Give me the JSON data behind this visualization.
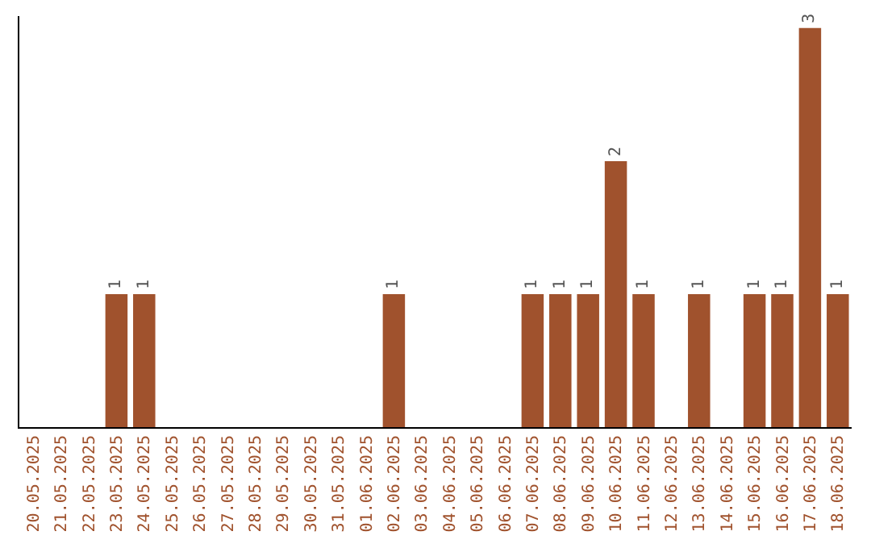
{
  "chart_data": {
    "type": "bar",
    "categories": [
      "20.05.2025",
      "21.05.2025",
      "22.05.2025",
      "23.05.2025",
      "24.05.2025",
      "25.05.2025",
      "26.05.2025",
      "27.05.2025",
      "28.05.2025",
      "29.05.2025",
      "30.05.2025",
      "31.05.2025",
      "01.06.2025",
      "02.06.2025",
      "03.06.2025",
      "04.06.2025",
      "05.06.2025",
      "06.06.2025",
      "07.06.2025",
      "08.06.2025",
      "09.06.2025",
      "10.06.2025",
      "11.06.2025",
      "12.06.2025",
      "13.06.2025",
      "14.06.2025",
      "15.06.2025",
      "16.06.2025",
      "17.06.2025",
      "18.06.2025"
    ],
    "values": [
      0,
      0,
      0,
      1,
      1,
      0,
      0,
      0,
      0,
      0,
      0,
      0,
      0,
      1,
      0,
      0,
      0,
      0,
      1,
      1,
      1,
      2,
      1,
      0,
      1,
      0,
      1,
      1,
      3,
      1
    ],
    "value_labels": [
      null,
      null,
      null,
      "1",
      "1",
      null,
      null,
      null,
      null,
      null,
      null,
      null,
      null,
      "1",
      null,
      null,
      null,
      null,
      "1",
      "1",
      "1",
      "2",
      "1",
      null,
      "1",
      null,
      "1",
      "1",
      "3",
      "1"
    ],
    "color": "#a0522d",
    "tick_labels": "x",
    "legend": false
  }
}
